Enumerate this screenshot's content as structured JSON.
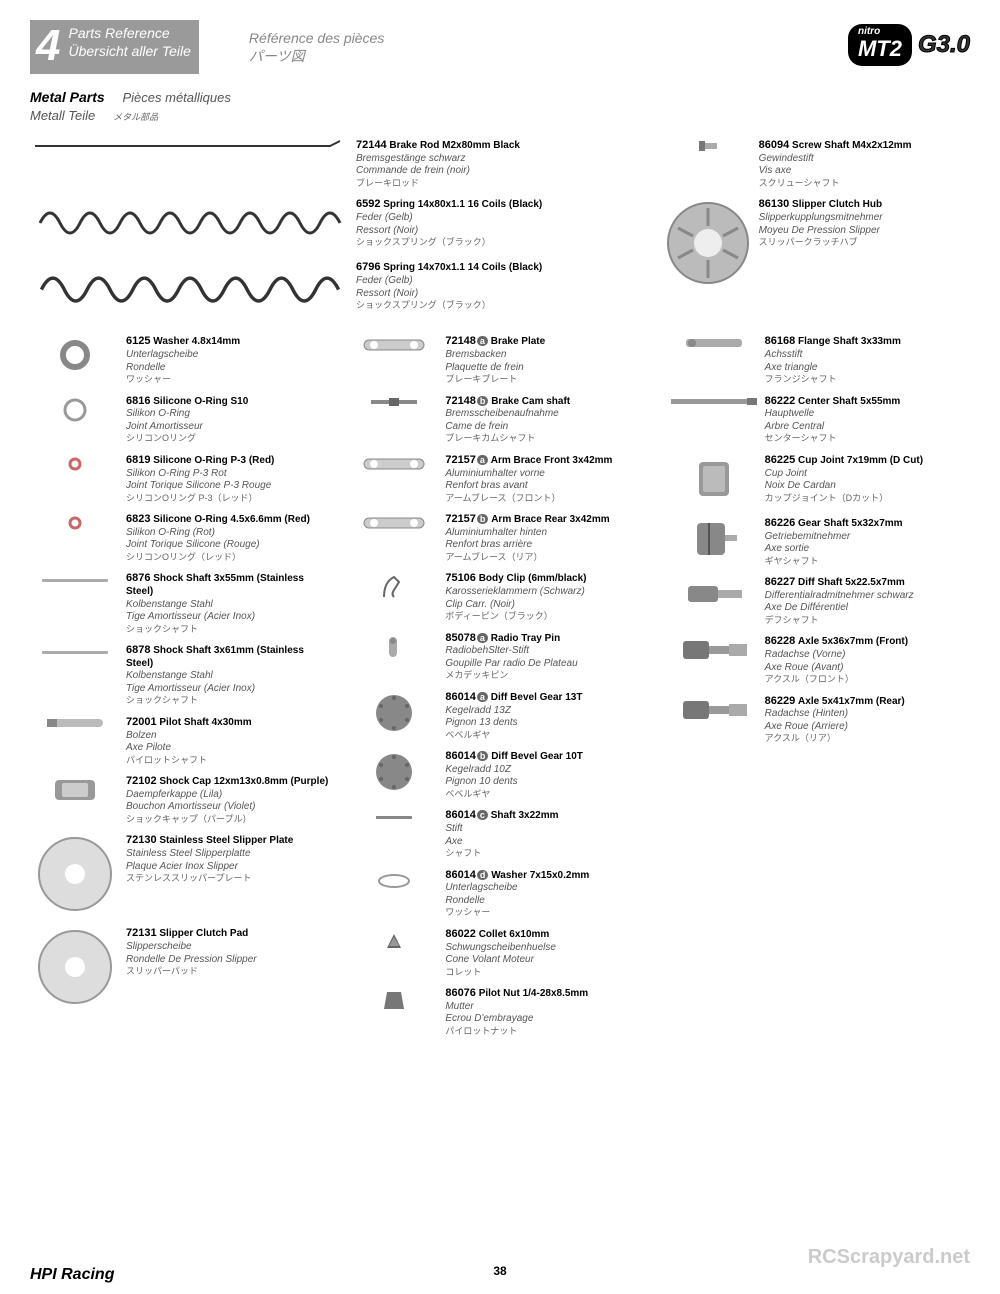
{
  "header": {
    "number": "4",
    "title_en": "Parts Reference",
    "title_de": "Übersicht aller Teile",
    "title_fr": "Référence des pièces",
    "title_jp": "パーツ図"
  },
  "logo": {
    "brand_small": "nitro",
    "brand": "MT2",
    "variant": "G3.0"
  },
  "section": {
    "title": "Metal Parts",
    "sub_de": "Metall Teile",
    "sub_fr": "Pièces métalliques",
    "sub_jp": "メタル部品"
  },
  "pageNumber": "38",
  "footerBrand": "HPI Racing",
  "watermark": "RCScrapyard.net",
  "col1": [
    {
      "pn": "6125",
      "name": "Washer 4.8x14mm",
      "de": "Unterlagscheibe",
      "fr": "Rondelle",
      "jp": "ワッシャー"
    },
    {
      "pn": "6816",
      "name": "Silicone O-Ring S10",
      "de": "Silikon O-Ring",
      "fr": "Joint Amortisseur",
      "jp": "シリコンOリング"
    },
    {
      "pn": "6819",
      "name": "Silicone O-Ring P-3 (Red)",
      "de": "Silikon O-Ring P-3 Rot",
      "fr": "Joint Torique Silicone P-3 Rouge",
      "jp": "シリコンOリング P-3（レッド）"
    },
    {
      "pn": "6823",
      "name": "Silicone O-Ring 4.5x6.6mm (Red)",
      "de": "Silikon O-Ring (Rot)",
      "fr": "Joint Torique Silicone (Rouge)",
      "jp": "シリコンOリング（レッド）"
    },
    {
      "pn": "6876",
      "name": "Shock Shaft 3x55mm (Stainless Steel)",
      "de": "Kolbenstange Stahl",
      "fr": "Tige Amortisseur (Acier Inox)",
      "jp": "ショックシャフト"
    },
    {
      "pn": "6878",
      "name": "Shock Shaft 3x61mm (Stainless Steel)",
      "de": "Kolbenstange Stahl",
      "fr": "Tige Amortisseur (Acier Inox)",
      "jp": "ショックシャフト"
    },
    {
      "pn": "72001",
      "name": "Pilot Shaft 4x30mm",
      "de": "Bolzen",
      "fr": "Axe Pilote",
      "jp": "パイロットシャフト"
    },
    {
      "pn": "72102",
      "name": "Shock Cap 12xm13x0.8mm (Purple)",
      "de": "Daempferkappe (Lila)",
      "fr": "Bouchon Amortisseur (Violet)",
      "jp": "ショックキャップ（パープル）"
    },
    {
      "pn": "72130",
      "name": "Stainless Steel Slipper Plate",
      "de": "Stainless Steel Slipperplatte",
      "fr": "Plaque Acier Inox Slipper",
      "jp": "ステンレススリッパープレート"
    },
    {
      "pn": "72131",
      "name": "Slipper Clutch Pad",
      "de": "Slipperscheibe",
      "fr": "Rondelle De Pression Slipper",
      "jp": "スリッパーパッド"
    }
  ],
  "springs": [
    {
      "pn": "72144",
      "name": "Brake Rod M2x80mm Black",
      "de": "Bremsgestänge schwarz",
      "fr": "Commande de frein (noir)",
      "jp": "ブレーキロッド"
    },
    {
      "pn": "6592",
      "name": "Spring 14x80x1.1 16 Coils (Black)",
      "de": "Feder (Gelb)",
      "fr": "Ressort (Noir)",
      "jp": "ショックスプリング（ブラック）"
    },
    {
      "pn": "6796",
      "name": "Spring 14x70x1.1 14 Coils (Black)",
      "de": "Feder (Gelb)",
      "fr": "Ressort (Noir)",
      "jp": "ショックスプリング（ブラック）"
    }
  ],
  "col2": [
    {
      "pn": "72148",
      "sub": "a",
      "name": "Brake Plate",
      "de": "Bremsbacken",
      "fr": "Plaquette de frein",
      "jp": "ブレーキプレート"
    },
    {
      "pn": "72148",
      "sub": "b",
      "name": "Brake Cam shaft",
      "de": "Bremsscheibenaufnahme",
      "fr": "Came de frein",
      "jp": "ブレーキカムシャフト"
    },
    {
      "pn": "72157",
      "sub": "a",
      "name": "Arm Brace Front 3x42mm",
      "de": "Aluminiumhalter vorne",
      "fr": "Renfort bras avant",
      "jp": "アームブレース（フロント）"
    },
    {
      "pn": "72157",
      "sub": "b",
      "name": "Arm Brace Rear 3x42mm",
      "de": "Aluminiumhalter hinten",
      "fr": "Renfort bras arrière",
      "jp": "アームブレース（リア）"
    },
    {
      "pn": "75106",
      "name": "Body Clip (6mm/black)",
      "de": "Karosserieklammern (Schwarz)",
      "fr": "Clip Carr. (Noir)",
      "jp": "ボディーピン（ブラック）"
    },
    {
      "pn": "85078",
      "sub": "a",
      "name": "Radio Tray Pin",
      "de": "RadiobehSlter-Stift",
      "fr": "Goupille Par radio De Plateau",
      "jp": "メカデッキピン"
    },
    {
      "pn": "86014",
      "sub": "a",
      "name": "Diff Bevel Gear 13T",
      "de": "Kegelradd 13Z",
      "fr": "Pignon 13 dents",
      "jp": "ベベルギヤ"
    },
    {
      "pn": "86014",
      "sub": "b",
      "name": "Diff Bevel Gear 10T",
      "de": "Kegelradd 10Z",
      "fr": "Pignon 10 dents",
      "jp": "ベベルギヤ"
    },
    {
      "pn": "86014",
      "sub": "c",
      "name": "Shaft 3x22mm",
      "de": "Stift",
      "fr": "Axe",
      "jp": "シャフト"
    },
    {
      "pn": "86014",
      "sub": "d",
      "name": "Washer 7x15x0.2mm",
      "de": "Unterlagscheibe",
      "fr": "Rondelle",
      "jp": "ワッシャー"
    },
    {
      "pn": "86022",
      "name": "Collet 6x10mm",
      "de": "Schwungscheibenhuelse",
      "fr": "Cone Volant Moteur",
      "jp": "コレット"
    },
    {
      "pn": "86076",
      "name": "Pilot Nut 1/4-28x8.5mm",
      "de": "Mutter",
      "fr": "Ecrou D'embrayage",
      "jp": "パイロットナット"
    }
  ],
  "col3": [
    {
      "pn": "86094",
      "name": "Screw Shaft M4x2x12mm",
      "de": "Gewindestift",
      "fr": "Vis axe",
      "jp": "スクリューシャフト"
    },
    {
      "pn": "86130",
      "name": "Slipper Clutch Hub",
      "de": "Slipperkupplungsmitnehmer",
      "fr": "Moyeu De Pression Slipper",
      "jp": "スリッパークラッチハブ"
    },
    {
      "pn": "86168",
      "name": "Flange Shaft 3x33mm",
      "de": "Achsstift",
      "fr": "Axe triangle",
      "jp": "フランジシャフト"
    },
    {
      "pn": "86222",
      "name": "Center Shaft 5x55mm",
      "de": "Hauptwelle",
      "fr": "Arbre Central",
      "jp": "センターシャフト"
    },
    {
      "pn": "86225",
      "name": "Cup Joint 7x19mm (D Cut)",
      "de": "Cup Joint",
      "fr": "Noix De Cardan",
      "jp": "カップジョイント（Dカット）"
    },
    {
      "pn": "86226",
      "name": "Gear Shaft 5x32x7mm",
      "de": "Getriebemitnehmer",
      "fr": "Axe sortie",
      "jp": "ギヤシャフト"
    },
    {
      "pn": "86227",
      "name": "Diff Shaft 5x22.5x7mm",
      "de": "Differentialradmitnehmer schwarz",
      "fr": "Axe De Différentiel",
      "jp": "デフシャフト"
    },
    {
      "pn": "86228",
      "name": "Axle 5x36x7mm (Front)",
      "de": "Radachse (Vorne)",
      "fr": "Axe Roue (Avant)",
      "jp": "アクスル（フロント）"
    },
    {
      "pn": "86229",
      "name": "Axle 5x41x7mm (Rear)",
      "de": "Radachse (Hinten)",
      "fr": "Axe Roue (Arriere)",
      "jp": "アクスル（リア）"
    }
  ]
}
